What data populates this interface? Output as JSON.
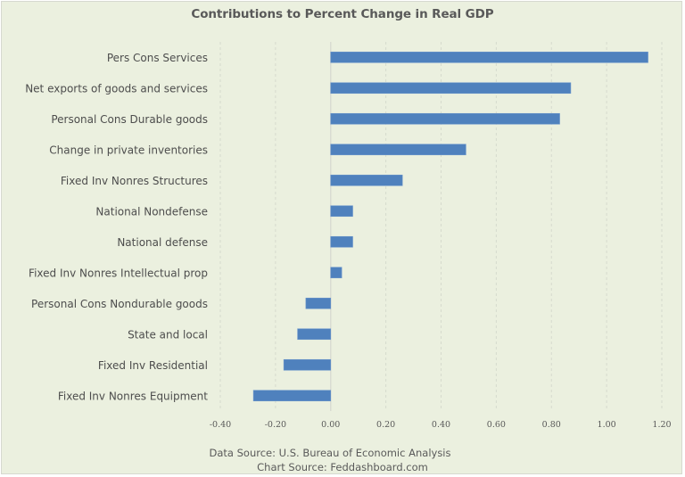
{
  "chart_data": {
    "type": "bar",
    "orientation": "horizontal",
    "title": "Contributions to Percent Change in Real GDP",
    "xlabel": "",
    "ylabel": "",
    "categories": [
      "Pers Cons Services",
      "Net exports of goods and services",
      "Personal Cons Durable goods",
      "Change in private inventories",
      "Fixed Inv Nonres Structures",
      "National  Nondefense",
      "National defense",
      "Fixed Inv Nonres Intellectual prop",
      "Personal Cons Nondurable goods",
      "State and local",
      "Fixed Inv Residential",
      "Fixed Inv Nonres Equipment"
    ],
    "values": [
      1.15,
      0.87,
      0.83,
      0.49,
      0.26,
      0.08,
      0.08,
      0.04,
      -0.09,
      -0.12,
      -0.17,
      -0.28
    ],
    "xlim": [
      -0.4,
      1.2
    ],
    "x_ticks": [
      -0.4,
      -0.2,
      0.0,
      0.2,
      0.4,
      0.6,
      0.8,
      1.0,
      1.2
    ],
    "x_tick_labels": [
      "-0.40",
      "-0.20",
      "0.00",
      "0.20",
      "0.40",
      "0.60",
      "0.80",
      "1.00",
      "1.20"
    ],
    "grid": "vertical dashed",
    "legend": "none",
    "bar_color": "#4f81bd",
    "background_color": "#ebf0df",
    "annotations": [
      "Data Source: U.S. Bureau of Economic Analysis",
      "Chart Source: Feddashboard.com"
    ]
  }
}
